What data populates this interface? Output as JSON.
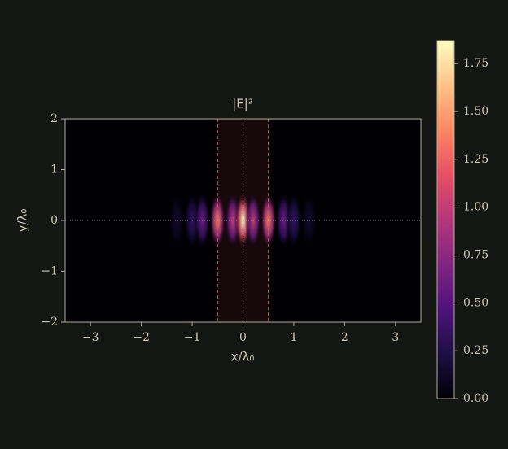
{
  "chart_data": {
    "type": "heatmap",
    "title": "|E|²",
    "xlabel": "x/λ₀",
    "ylabel": "y/λ₀",
    "xlim": [
      -3.5,
      3.5
    ],
    "ylim": [
      -2,
      2
    ],
    "xticks": [
      {
        "value": -3,
        "label": "−3"
      },
      {
        "value": -2,
        "label": "−2"
      },
      {
        "value": -1,
        "label": "−1"
      },
      0,
      1,
      2,
      3
    ],
    "yticks": [
      {
        "value": -2,
        "label": "−2"
      },
      {
        "value": -1,
        "label": "−1"
      },
      0,
      1,
      2
    ],
    "spots": {
      "x": [
        -1.3,
        -1.0,
        -0.8,
        -0.5,
        -0.2,
        0,
        0.2,
        0.5,
        0.8,
        1.0,
        1.3
      ],
      "values": [
        0.15,
        0.35,
        0.6,
        1.4,
        1.0,
        1.87,
        1.0,
        1.4,
        0.6,
        0.35,
        0.15
      ]
    },
    "slab": [
      -0.5,
      0.5
    ],
    "slab_color": "#e05040",
    "guide_x": 0,
    "guide_y": 0,
    "colorbar": {
      "lim": [
        0,
        1.87
      ],
      "ticks": [
        {
          "value": 0,
          "label": "0.00"
        },
        {
          "value": 0.25,
          "label": "0.25"
        },
        {
          "value": 0.5,
          "label": "0.50"
        },
        {
          "value": 0.75,
          "label": "0.75"
        },
        {
          "value": 1,
          "label": "1.00"
        },
        {
          "value": 1.25,
          "label": "1.25"
        },
        {
          "value": 1.5,
          "label": "1.50"
        },
        {
          "value": 1.75,
          "label": "1.75"
        }
      ],
      "colors": [
        "#000004",
        "#1c1044",
        "#4f127b",
        "#812581",
        "#b5367a",
        "#e55064",
        "#fb8761",
        "#fec287",
        "#fcfdbf"
      ]
    }
  }
}
